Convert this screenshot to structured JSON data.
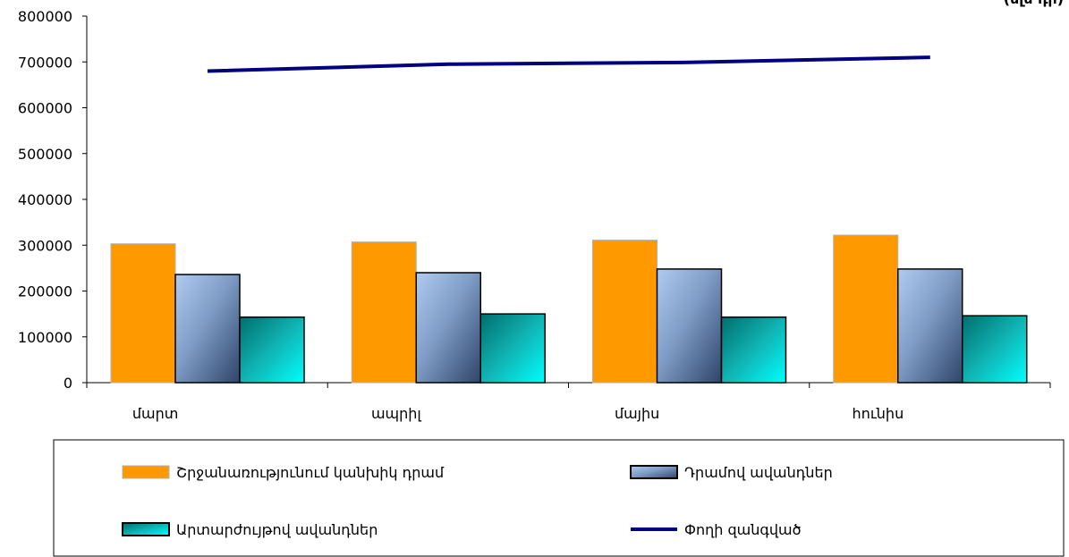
{
  "chart_data": {
    "type": "bar",
    "title": "",
    "corner_label": "(մլն դր)",
    "categories": [
      "մարտ",
      "ապրիլ",
      "մայիս",
      "հունիս"
    ],
    "ylim": [
      0,
      800000
    ],
    "yticks": [
      0,
      100000,
      200000,
      300000,
      400000,
      500000,
      600000,
      700000,
      800000
    ],
    "ytick_labels": [
      "0",
      "100000",
      "200000",
      "300000",
      "400000",
      "500000",
      "600000",
      "700000",
      "800000"
    ],
    "grid": false,
    "legend_position": "bottom",
    "series": [
      {
        "name": "Շրջանառությունում կանխիկ դրամ",
        "kind": "bar",
        "color": "#FF9900",
        "values": [
          303000,
          307000,
          311000,
          322000
        ]
      },
      {
        "name": "Դրամով ավանդներ",
        "kind": "bar",
        "color": "#4A6A96",
        "values": [
          236000,
          240000,
          248000,
          248000
        ]
      },
      {
        "name": "Արտարժույթով ավանդներ",
        "kind": "bar",
        "color": "#00CCCC",
        "values": [
          143000,
          150000,
          143000,
          146000
        ]
      },
      {
        "name": "Փողի զանգված",
        "kind": "line",
        "color": "#000080",
        "values": [
          680000,
          695000,
          699000,
          710000
        ]
      }
    ]
  }
}
